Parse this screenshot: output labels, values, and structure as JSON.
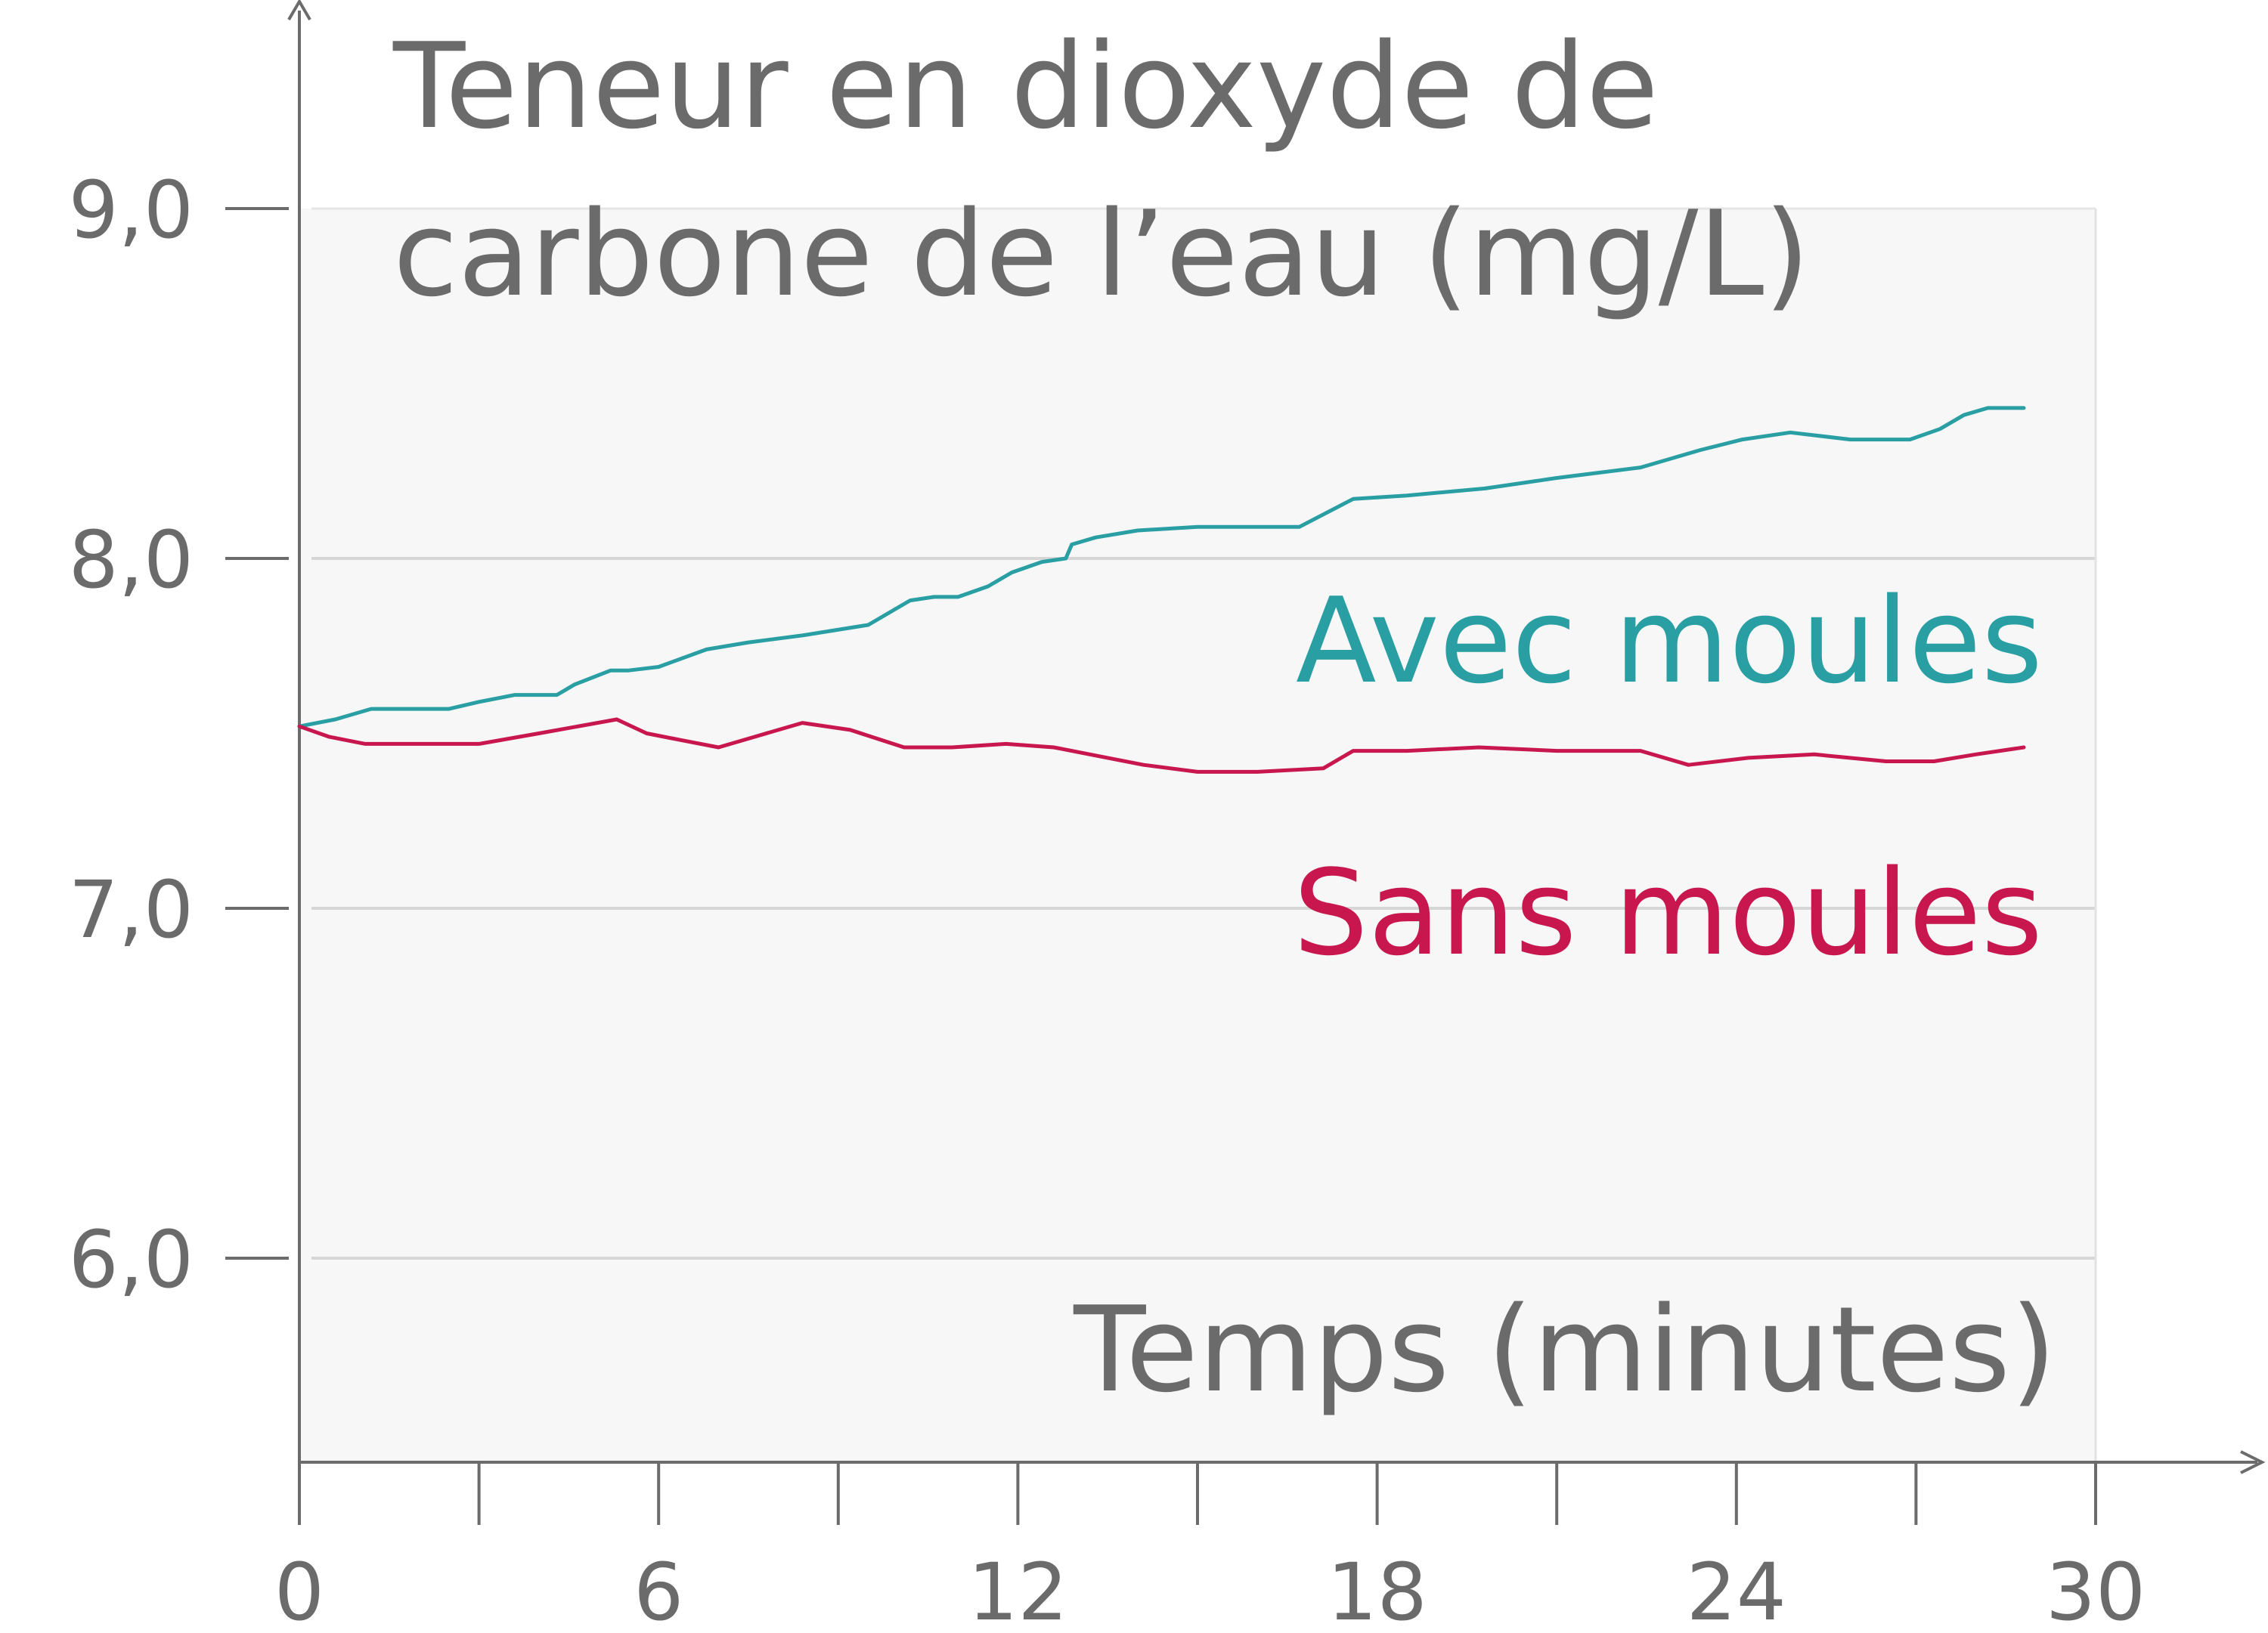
{
  "chart_data": {
    "type": "line",
    "title": "Teneur en dioxyde de carbone de l’eau (mg/L)",
    "title_lines": [
      "Teneur en dioxyde de",
      "carbone de l’eau (mg/L)"
    ],
    "xlabel": "Temps (minutes)",
    "ylabel": "",
    "xlim": [
      0,
      30
    ],
    "ylim": [
      5.45,
      9.0
    ],
    "x_major_ticks": [
      0,
      6,
      12,
      18,
      24,
      30
    ],
    "x_minor_ticks": [
      3,
      9,
      15,
      21,
      27
    ],
    "x_tick_labels": [
      "0",
      "6",
      "12",
      "18",
      "24",
      "30"
    ],
    "y_ticks": [
      6.0,
      7.0,
      8.0,
      9.0
    ],
    "y_tick_labels": [
      "6,0",
      "7,0",
      "8,0",
      "9,0"
    ],
    "grid": true,
    "colors": {
      "avec": "#2a9fa3",
      "sans": "#c8174e",
      "text": "#6b6b6b",
      "axis": "#6b6b6b",
      "plot_bg": "#f7f7f7",
      "grid": "#d6d6d6"
    },
    "series": [
      {
        "name": "Avec moules",
        "color": "#2a9fa3",
        "x": [
          0,
          0.6,
          1.2,
          2.0,
          2.5,
          3.0,
          3.6,
          4.3,
          4.6,
          5.2,
          5.5,
          6.0,
          6.8,
          7.5,
          8.4,
          9.5,
          10.2,
          10.6,
          11.0,
          11.5,
          11.9,
          12.4,
          12.8,
          12.9,
          13.3,
          14.0,
          15.0,
          16.0,
          16.7,
          17.6,
          18.5,
          19.8,
          21.0,
          22.4,
          23.4,
          24.1,
          24.9,
          25.9,
          26.5,
          26.9,
          27.4,
          27.8,
          28.2,
          28.8
        ],
        "y": [
          7.52,
          7.54,
          7.57,
          7.57,
          7.57,
          7.59,
          7.61,
          7.61,
          7.64,
          7.68,
          7.68,
          7.69,
          7.74,
          7.76,
          7.78,
          7.81,
          7.88,
          7.89,
          7.89,
          7.92,
          7.96,
          7.99,
          8.0,
          8.04,
          8.06,
          8.08,
          8.09,
          8.09,
          8.09,
          8.17,
          8.18,
          8.2,
          8.23,
          8.26,
          8.31,
          8.34,
          8.36,
          8.34,
          8.34,
          8.34,
          8.37,
          8.41,
          8.43,
          8.43
        ]
      },
      {
        "name": "Sans moules",
        "color": "#c8174e",
        "x": [
          0,
          0.5,
          1.1,
          2.0,
          3.0,
          4.0,
          5.3,
          5.8,
          6.4,
          7.0,
          7.6,
          8.4,
          9.2,
          10.1,
          10.9,
          11.8,
          12.6,
          13.5,
          14.1,
          15.0,
          16.0,
          17.1,
          17.6,
          18.5,
          19.7,
          21.0,
          22.4,
          23.2,
          24.2,
          25.3,
          26.5,
          27.3,
          28.0,
          28.8
        ],
        "y": [
          7.52,
          7.49,
          7.47,
          7.47,
          7.47,
          7.5,
          7.54,
          7.5,
          7.48,
          7.46,
          7.49,
          7.53,
          7.51,
          7.46,
          7.46,
          7.47,
          7.46,
          7.43,
          7.41,
          7.39,
          7.39,
          7.4,
          7.45,
          7.45,
          7.46,
          7.45,
          7.45,
          7.41,
          7.43,
          7.44,
          7.42,
          7.42,
          7.44,
          7.46
        ]
      }
    ]
  }
}
